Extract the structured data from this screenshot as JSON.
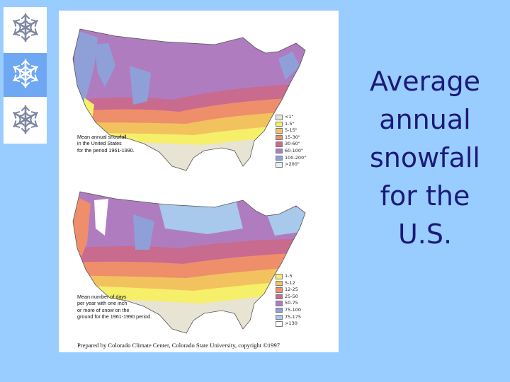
{
  "title": "Average annual snowfall for the U.S.",
  "snowflakes": [
    {
      "icon": "snowflake-icon",
      "selected": false
    },
    {
      "icon": "snowflake-icon",
      "selected": true
    },
    {
      "icon": "snowflake-icon",
      "selected": false
    }
  ],
  "map_top": {
    "caption": [
      "Mean annual snowfall",
      "in the United States",
      "for the period 1961-1990."
    ],
    "legend": [
      {
        "label": "<1\"",
        "color": "#e8e4d4"
      },
      {
        "label": "1-5\"",
        "color": "#f5ef6a"
      },
      {
        "label": "5-15\"",
        "color": "#f2c25e"
      },
      {
        "label": "15-30\"",
        "color": "#ef8e6b"
      },
      {
        "label": "30-60\"",
        "color": "#c86b8f"
      },
      {
        "label": "60-100\"",
        "color": "#b07cc0"
      },
      {
        "label": "100-200\"",
        "color": "#8fa0d8"
      },
      {
        "label": ">200\"",
        "color": "#dff0fa"
      }
    ]
  },
  "map_bottom": {
    "caption": [
      "Mean number of days",
      "per year with one inch",
      "or more of snow on the",
      "ground for the 1961-1990 period."
    ],
    "legend": [
      {
        "label": "1-5",
        "color": "#f5ef6a"
      },
      {
        "label": "5-12",
        "color": "#f2c25e"
      },
      {
        "label": "12-25",
        "color": "#ef8e6b"
      },
      {
        "label": "25-50",
        "color": "#c86b8f"
      },
      {
        "label": "50-75",
        "color": "#b07cc0"
      },
      {
        "label": "75-100",
        "color": "#8fa0d8"
      },
      {
        "label": "75-175",
        "color": "#a8c8ec"
      },
      {
        "label": ">130",
        "color": "#ffffff"
      }
    ]
  },
  "credit": "Prepared by Colorado Climate Center, Colorado State University, copyright ©1997",
  "colors": {
    "background": "#99ccff",
    "title": "#1a1a7a",
    "selected_cell": "#6fa8f2"
  }
}
